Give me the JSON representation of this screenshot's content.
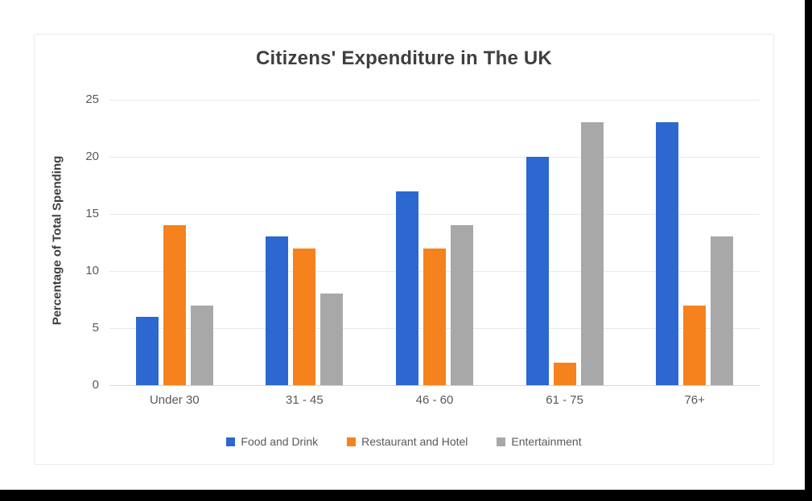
{
  "chart_data": {
    "type": "bar",
    "title": "Citizens' Expenditure in The UK",
    "ylabel": "Percentage of Total Spending",
    "xlabel": "",
    "categories": [
      "Under 30",
      "31 - 45",
      "46 - 60",
      "61 - 75",
      "76+"
    ],
    "series": [
      {
        "name": "Food and Drink",
        "color": "#2d67d0",
        "values": [
          6,
          13,
          17,
          20,
          23
        ]
      },
      {
        "name": "Restaurant and Hotel",
        "color": "#f6821d",
        "values": [
          14,
          12,
          12,
          2,
          7
        ]
      },
      {
        "name": "Entertainment",
        "color": "#a8a8a8",
        "values": [
          7,
          8,
          14,
          23,
          13
        ]
      }
    ],
    "ylim": [
      0,
      25
    ],
    "yticks": [
      0,
      5,
      10,
      15,
      20,
      25
    ],
    "grid": true,
    "legend_position": "bottom"
  },
  "frame": {
    "background": "#ffffff",
    "card_border": "#ececec",
    "black_edge": "#000000",
    "gridline_color": "#e9e9e9",
    "axis_line_color": "#d6d6d6",
    "title_color": "#3f3f3f",
    "tick_color": "#595959"
  }
}
